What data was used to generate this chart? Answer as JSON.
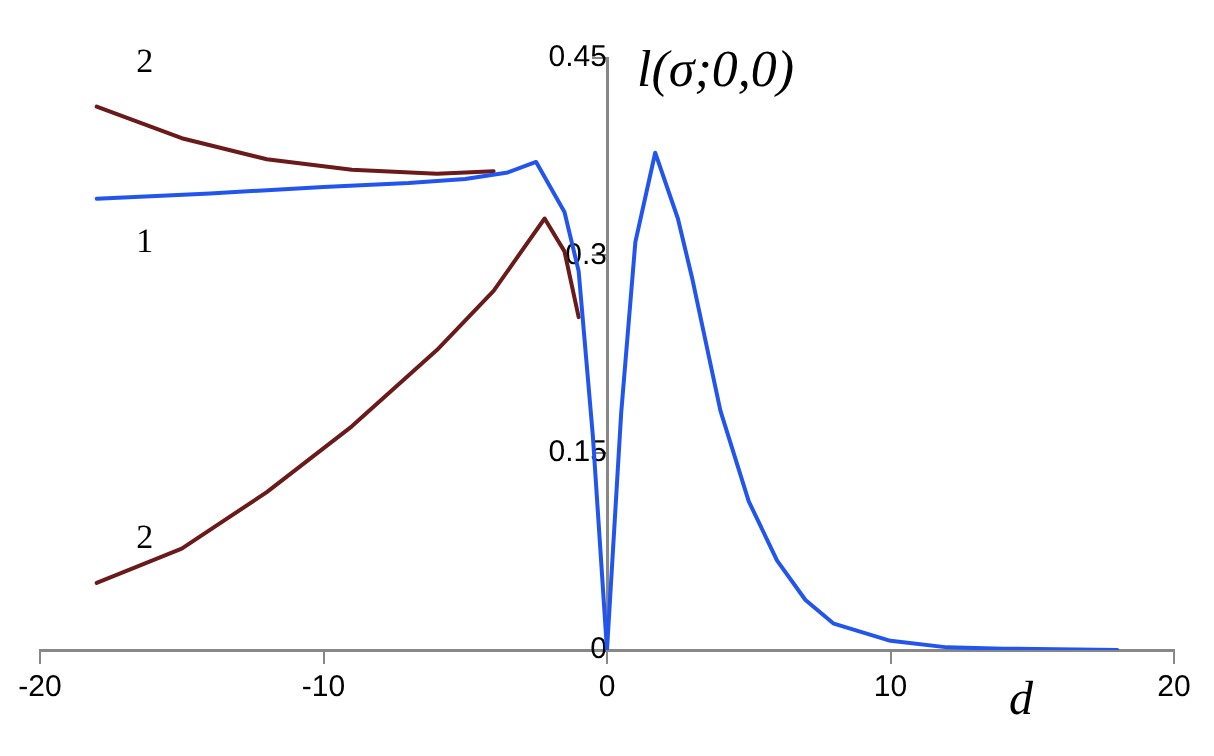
{
  "chart_data": {
    "type": "line",
    "xlabel": "d",
    "ylabel": "l(σ;0,0)",
    "xlim": [
      -20,
      20
    ],
    "xticks": [
      -20,
      -10,
      0,
      10,
      20
    ],
    "ylim": [
      0,
      0.45
    ],
    "yticks": [
      0,
      0.15,
      0.3,
      0.45
    ],
    "grid": false,
    "legend": false,
    "marker": "none",
    "line_style": "solid",
    "series": [
      {
        "name": "2",
        "color": "#6b1a1a",
        "x": [
          -18,
          -15,
          -12,
          -9,
          -6,
          -4
        ],
        "values": [
          0.413,
          0.389,
          0.373,
          0.365,
          0.362,
          0.364
        ]
      },
      {
        "name": "2",
        "color": "#6b1a1a",
        "x": [
          -18,
          -15,
          -12,
          -9,
          -6,
          -4,
          -2.2,
          -1.5,
          -1
        ],
        "values": [
          0.051,
          0.077,
          0.12,
          0.17,
          0.228,
          0.273,
          0.328,
          0.303,
          0.253
        ]
      },
      {
        "name": "1",
        "color": "#2255ee",
        "x": [
          -18,
          -14,
          -10,
          -7,
          -5,
          -3.5,
          -2.5,
          -1.5,
          -1,
          -0.5,
          0,
          0.5,
          1,
          1.7,
          2.5,
          3,
          4,
          5,
          6,
          7,
          8,
          10,
          12,
          14,
          18
        ],
        "values": [
          0.343,
          0.347,
          0.352,
          0.355,
          0.358,
          0.363,
          0.371,
          0.333,
          0.288,
          0.163,
          0,
          0.18,
          0.31,
          0.378,
          0.328,
          0.283,
          0.182,
          0.113,
          0.068,
          0.038,
          0.02,
          0.007,
          0.002,
          0.001,
          0
        ]
      }
    ]
  }
}
